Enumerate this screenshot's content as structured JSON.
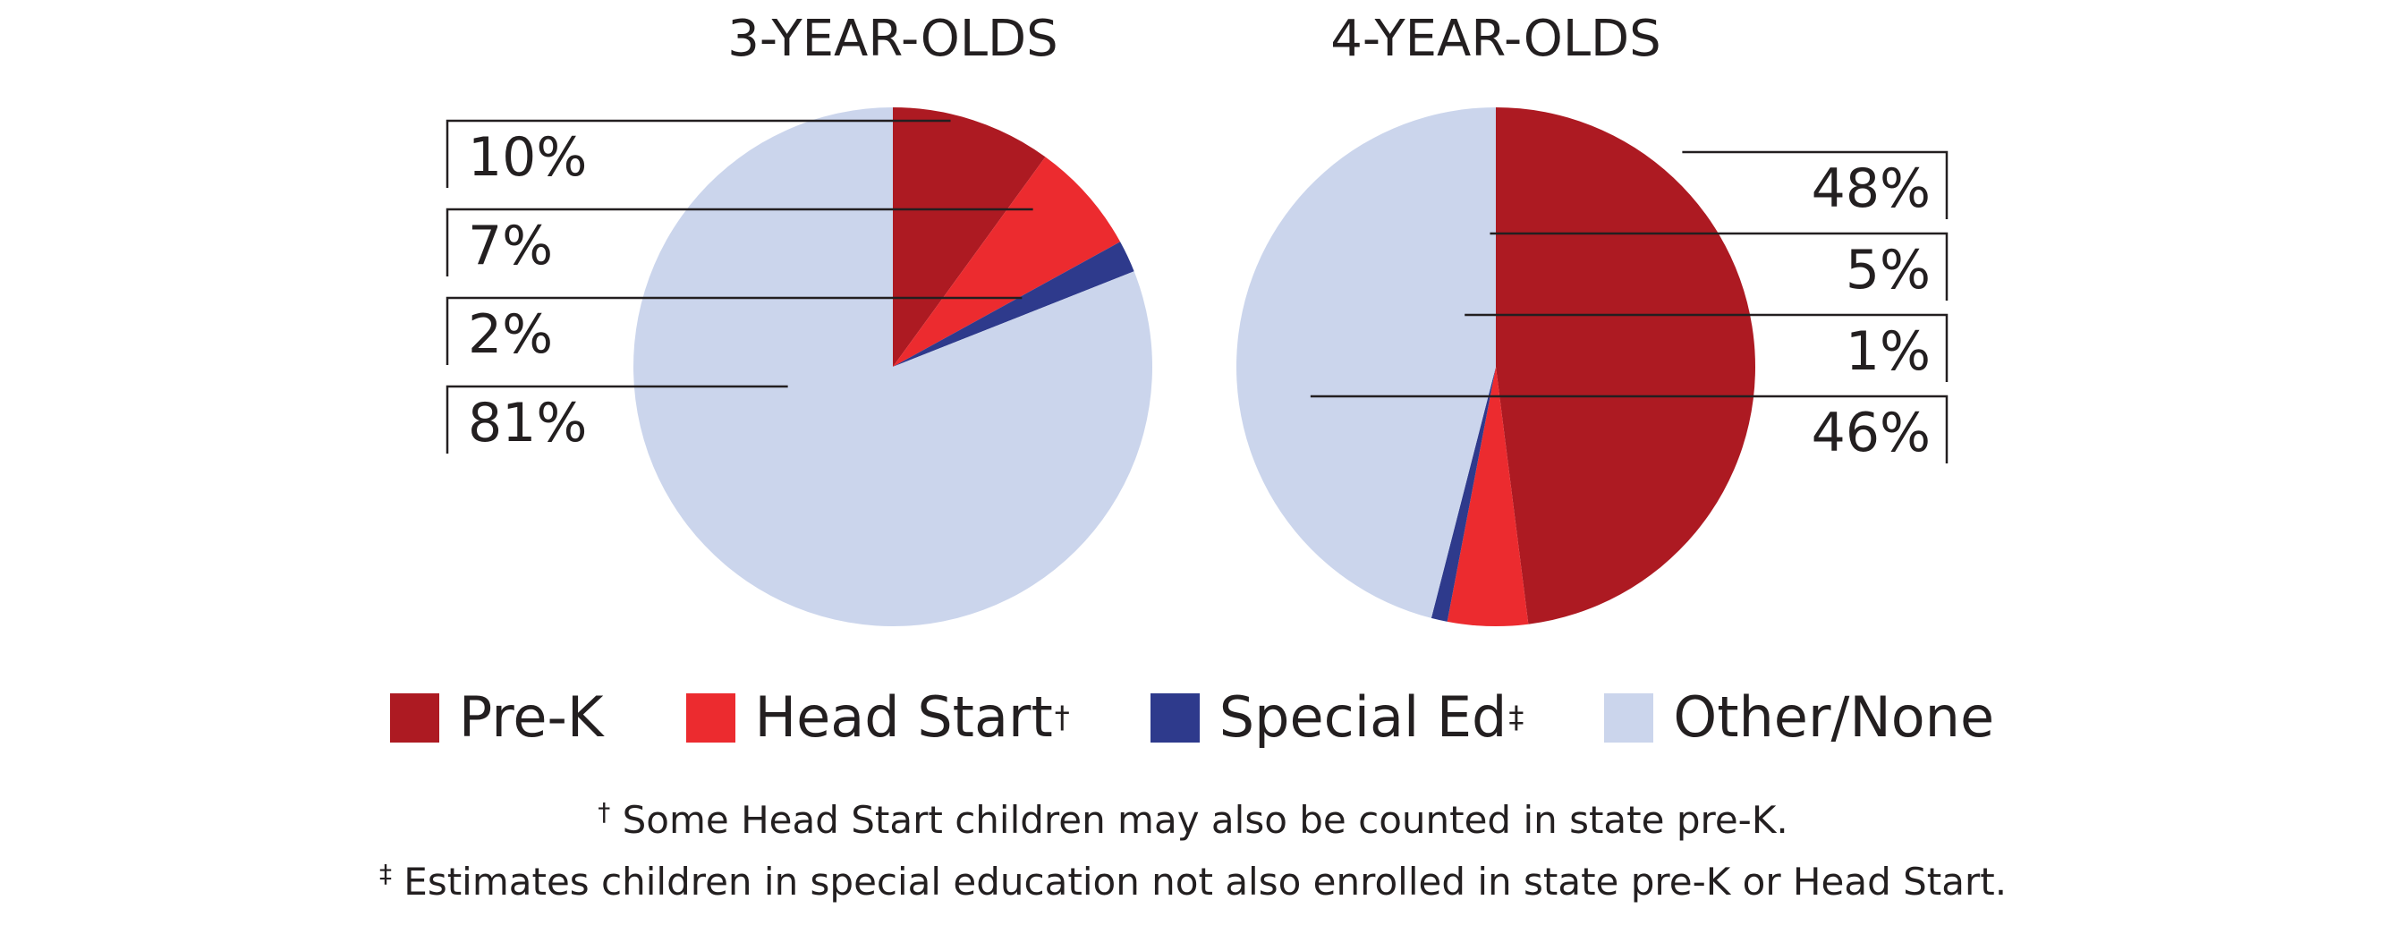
{
  "chart_data": [
    {
      "type": "pie",
      "title": "3-YEAR-OLDS",
      "categories": [
        "Pre-K",
        "Head Start",
        "Special Ed",
        "Other/None"
      ],
      "values": [
        10,
        7,
        2,
        81
      ],
      "value_labels": [
        "10%",
        "7%",
        "2%",
        "81%"
      ],
      "label_side": "left"
    },
    {
      "type": "pie",
      "title": "4-YEAR-OLDS",
      "categories": [
        "Pre-K",
        "Head Start",
        "Special Ed",
        "Other/None"
      ],
      "values": [
        48,
        5,
        1,
        46
      ],
      "value_labels": [
        "48%",
        "5%",
        "1%",
        "46%"
      ],
      "label_side": "right"
    }
  ],
  "colors": [
    "#ad1a22",
    "#ec2b2f",
    "#2e3a8c",
    "#cbd5ec"
  ],
  "legend": {
    "placement": "bottom",
    "items": [
      {
        "label": "Pre-K",
        "mark": ""
      },
      {
        "label": "Head Start",
        "mark": "†"
      },
      {
        "label": "Special Ed",
        "mark": "‡"
      },
      {
        "label": "Other/None",
        "mark": ""
      }
    ]
  },
  "footnotes": [
    {
      "mark": "†",
      "text": " Some Head Start children may also be counted in state pre-K."
    },
    {
      "mark": "‡",
      "text": " Estimates children in special education not also enrolled in state pre-K or Head Start."
    }
  ]
}
